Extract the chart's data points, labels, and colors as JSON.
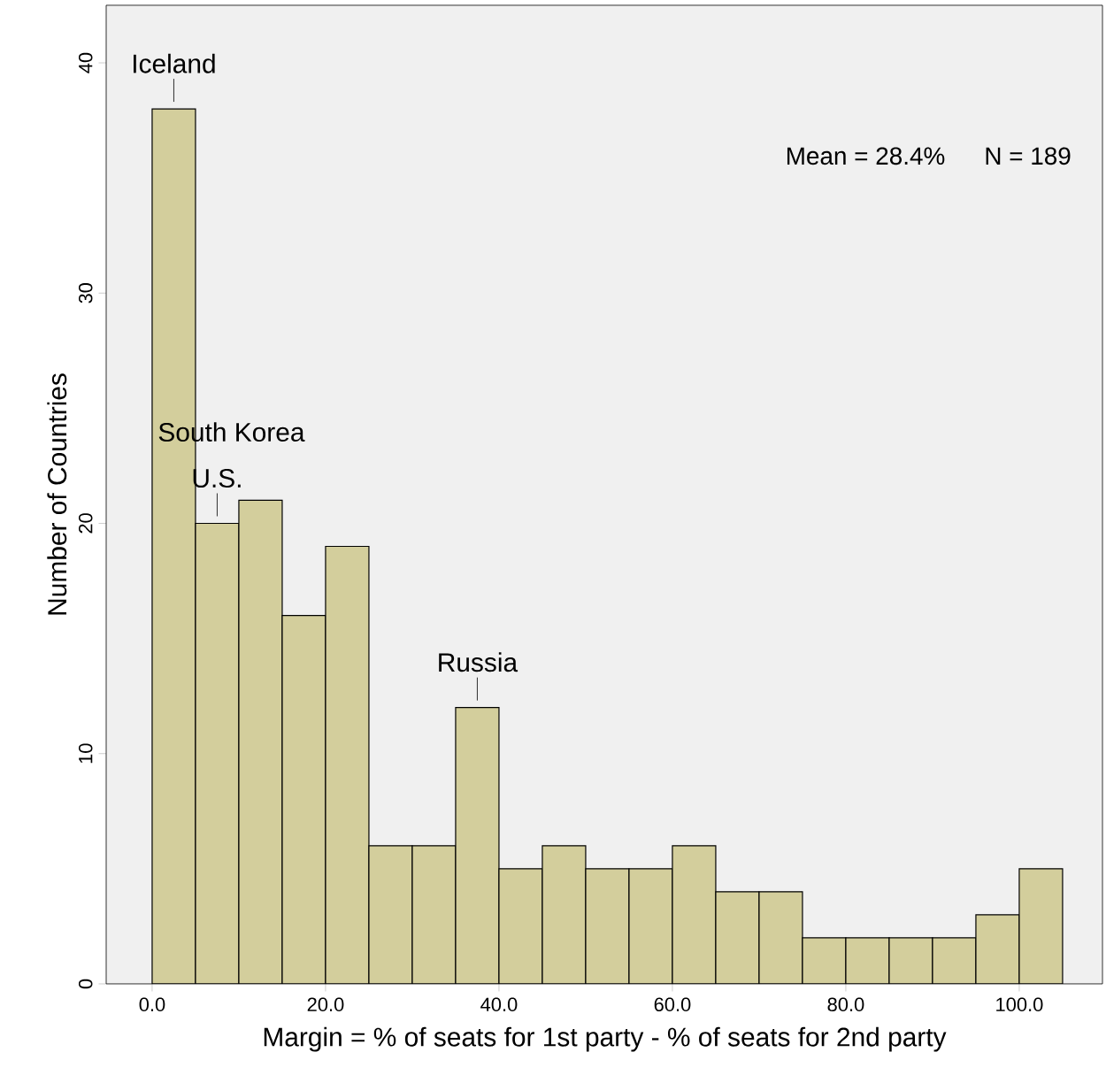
{
  "chart_data": {
    "type": "histogram",
    "xlabel": "Margin = % of seats for 1st party - % of seats for 2nd party",
    "ylabel": "Number of Countries",
    "bins": [
      0,
      5,
      10,
      15,
      20,
      25,
      30,
      35,
      40,
      45,
      50,
      55,
      60,
      65,
      70,
      75,
      80,
      85,
      90,
      95,
      100,
      105
    ],
    "values": [
      38,
      20,
      21,
      16,
      19,
      6,
      6,
      12,
      5,
      6,
      5,
      5,
      6,
      4,
      4,
      2,
      2,
      2,
      2,
      3,
      5
    ],
    "color": "#d3ce9c",
    "xlim": [
      -5.3,
      109.6
    ],
    "ylim": [
      0,
      42.5
    ],
    "xticks": [
      {
        "value": 0,
        "label": "0.0"
      },
      {
        "value": 20,
        "label": "20.0"
      },
      {
        "value": 40,
        "label": "40.0"
      },
      {
        "value": 60,
        "label": "60.0"
      },
      {
        "value": 80,
        "label": "80.0"
      },
      {
        "value": 100,
        "label": "100.0"
      }
    ],
    "yticks": [
      0,
      10,
      20,
      30,
      40
    ],
    "annotations": [
      {
        "text": "Iceland",
        "x": 2.5,
        "y": 38
      },
      "South Korea",
      {
        "text": "U.S.",
        "x": 7.5,
        "y": 20
      },
      {
        "text": "Russia",
        "x": 37.5,
        "y": 12
      },
      "Mean = 28.4%",
      "N = 189"
    ]
  }
}
